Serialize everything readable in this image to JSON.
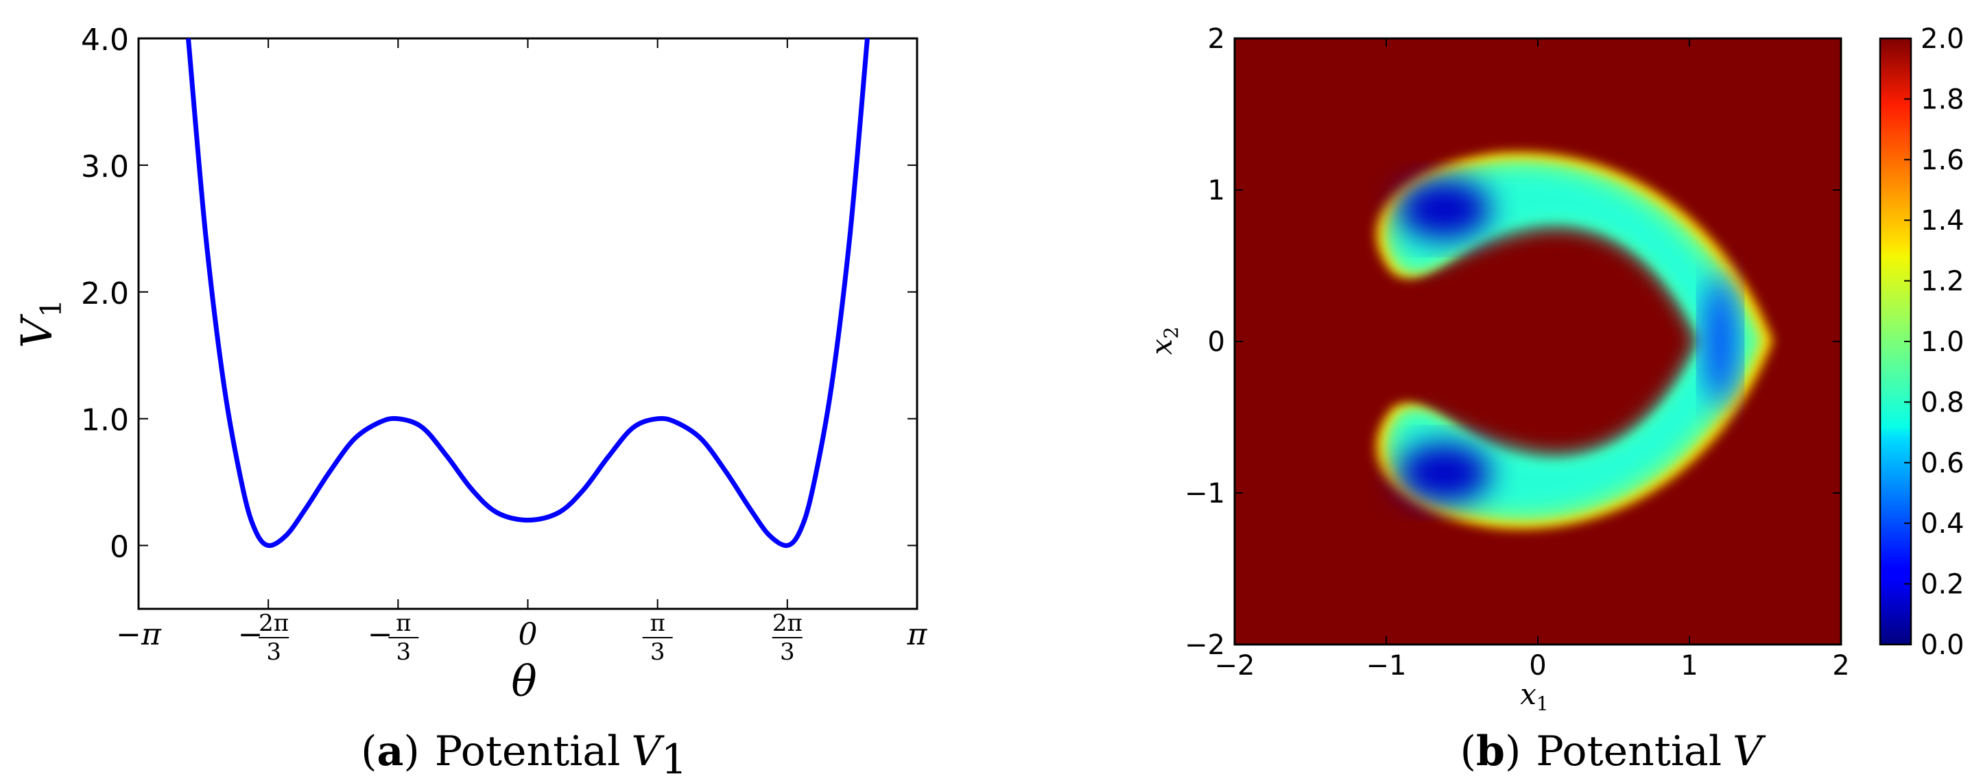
{
  "chart_data": [
    {
      "type": "line",
      "caption_label": "a",
      "caption_text": "Potential",
      "caption_symbol": "V",
      "caption_sub": "1",
      "xlabel": "θ",
      "ylabel": "V",
      "ylabel_sub": "1",
      "xlim": [
        -3.14159,
        3.14159
      ],
      "ylim": [
        -0.5,
        4.0
      ],
      "x_ticks": [
        {
          "value": -3.14159,
          "text": "−π"
        },
        {
          "value": -2.0944,
          "num": "2π",
          "den": "3",
          "sign": "−"
        },
        {
          "value": -1.0472,
          "num": "π",
          "den": "3",
          "sign": "−"
        },
        {
          "value": 0,
          "text": "0"
        },
        {
          "value": 1.0472,
          "num": "π",
          "den": "3",
          "sign": ""
        },
        {
          "value": 2.0944,
          "num": "2π",
          "den": "3",
          "sign": ""
        },
        {
          "value": 3.14159,
          "text": "π"
        }
      ],
      "y_ticks": [
        {
          "value": 0,
          "text": "0"
        },
        {
          "value": 1.0,
          "text": "1.0"
        },
        {
          "value": 2.0,
          "text": "2.0"
        },
        {
          "value": 3.0,
          "text": "3.0"
        },
        {
          "value": 4.0,
          "text": "4.0"
        }
      ],
      "series": [
        {
          "color": "#0000ff",
          "x": [
            -2.74,
            -2.6,
            -2.45,
            -2.3,
            -2.2,
            -2.0944,
            -1.95,
            -1.8,
            -1.6,
            -1.4,
            -1.2,
            -1.0472,
            -0.85,
            -0.65,
            -0.45,
            -0.25,
            0,
            0.25,
            0.45,
            0.65,
            0.85,
            1.0472,
            1.2,
            1.4,
            1.6,
            1.8,
            1.95,
            2.0944,
            2.2,
            2.3,
            2.45,
            2.6,
            2.74
          ],
          "y": [
            4.0,
            2.45,
            1.25,
            0.45,
            0.12,
            0.0,
            0.08,
            0.28,
            0.58,
            0.84,
            0.97,
            1.0,
            0.93,
            0.7,
            0.44,
            0.26,
            0.2,
            0.26,
            0.44,
            0.7,
            0.93,
            1.0,
            0.97,
            0.84,
            0.58,
            0.28,
            0.08,
            0.0,
            0.12,
            0.45,
            1.25,
            2.45,
            4.0
          ]
        }
      ]
    },
    {
      "type": "heatmap",
      "caption_label": "b",
      "caption_text": "Potential",
      "caption_symbol": "V",
      "xlabel": "x",
      "xlabel_sub": "1",
      "ylabel": "x",
      "ylabel_sub": "2",
      "xlim": [
        -2,
        2
      ],
      "ylim": [
        -2,
        2
      ],
      "x_ticks": [
        "−2",
        "−1",
        "0",
        "1",
        "2"
      ],
      "y_ticks": [
        "−2",
        "−1",
        "0",
        "1",
        "2"
      ],
      "colormap": "jet",
      "value_range": [
        0.0,
        2.0
      ],
      "colorbar_ticks": [
        "0.0",
        "0.2",
        "0.4",
        "0.6",
        "0.8",
        "1.0",
        "1.2",
        "1.4",
        "1.6",
        "1.8",
        "2.0"
      ],
      "background_color": "#800000",
      "minima": [
        {
          "x": -0.6,
          "y": 0.9,
          "value": 0.0
        },
        {
          "x": -0.6,
          "y": -0.9,
          "value": 0.0
        },
        {
          "x": 1.35,
          "y": 0.0,
          "value": 0.2
        }
      ]
    }
  ]
}
